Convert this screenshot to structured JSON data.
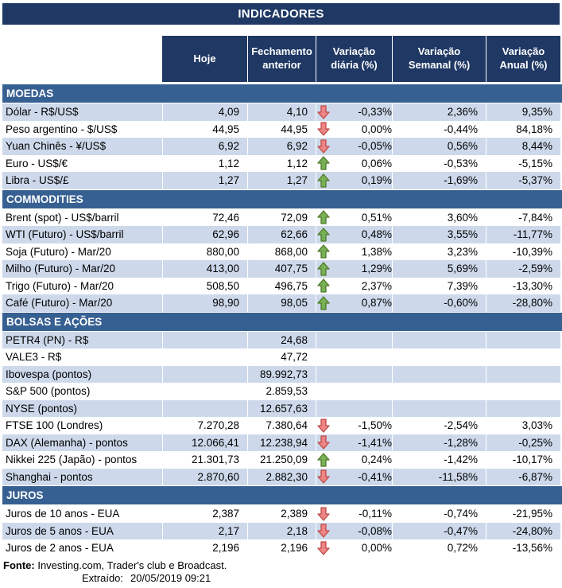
{
  "title": "INDICADORES",
  "columns": [
    "Hoje",
    "Fechamento anterior",
    "Variação diária (%)",
    "Variação Semanal (%)",
    "Variação Anual (%)"
  ],
  "colors": {
    "navy": "#1F3864",
    "section_blue": "#376092",
    "shaded_row": "#CDD9EB",
    "arrow_up_fill": "#77B055",
    "arrow_up_stroke": "#4F7A28",
    "arrow_down_fill": "#EE8585",
    "arrow_down_stroke": "#BE4B48"
  },
  "sections": [
    {
      "name": "MOEDAS",
      "first_row_shaded": true,
      "rows": [
        {
          "label": "Dólar - R$/US$",
          "hoje": "4,09",
          "fechamento": "4,10",
          "arrow": "down",
          "diaria": "-0,33%",
          "semanal": "2,36%",
          "anual": "9,35%"
        },
        {
          "label": "Peso argentino - $/US$",
          "hoje": "44,95",
          "fechamento": "44,95",
          "arrow": "down",
          "diaria": "0,00%",
          "semanal": "-0,44%",
          "anual": "84,18%"
        },
        {
          "label": "Yuan Chinês - ¥/US$",
          "hoje": "6,92",
          "fechamento": "6,92",
          "arrow": "down",
          "diaria": "-0,05%",
          "semanal": "0,56%",
          "anual": "8,44%"
        },
        {
          "label": "Euro - US$/€",
          "hoje": "1,12",
          "fechamento": "1,12",
          "arrow": "up",
          "diaria": "0,06%",
          "semanal": "-0,53%",
          "anual": "-5,15%"
        },
        {
          "label": "Libra - US$/£",
          "hoje": "1,27",
          "fechamento": "1,27",
          "arrow": "up",
          "diaria": "0,19%",
          "semanal": "-1,69%",
          "anual": "-5,37%"
        }
      ]
    },
    {
      "name": "COMMODITIES",
      "first_row_shaded": false,
      "rows": [
        {
          "label": "Brent (spot) - US$/barril",
          "hoje": "72,46",
          "fechamento": "72,09",
          "arrow": "up",
          "diaria": "0,51%",
          "semanal": "3,60%",
          "anual": "-7,84%"
        },
        {
          "label": "WTI (Futuro) - US$/barril",
          "hoje": "62,96",
          "fechamento": "62,66",
          "arrow": "up",
          "diaria": "0,48%",
          "semanal": "3,55%",
          "anual": "-11,77%"
        },
        {
          "label": "Soja (Futuro) - Mar/20",
          "hoje": "880,00",
          "fechamento": "868,00",
          "arrow": "up",
          "diaria": "1,38%",
          "semanal": "3,23%",
          "anual": "-10,39%"
        },
        {
          "label": "Milho (Futuro) - Mar/20",
          "hoje": "413,00",
          "fechamento": "407,75",
          "arrow": "up",
          "diaria": "1,29%",
          "semanal": "5,69%",
          "anual": "-2,59%"
        },
        {
          "label": "Trigo (Futuro) - Mar/20",
          "hoje": "508,50",
          "fechamento": "496,75",
          "arrow": "up",
          "diaria": "2,37%",
          "semanal": "7,39%",
          "anual": "-13,30%"
        },
        {
          "label": "Café (Futuro) - Mar/20",
          "hoje": "98,90",
          "fechamento": "98,05",
          "arrow": "up",
          "diaria": "0,87%",
          "semanal": "-0,60%",
          "anual": "-28,80%"
        }
      ]
    },
    {
      "name": "BOLSAS E AÇÕES",
      "first_row_shaded": true,
      "rows": [
        {
          "label": "PETR4 (PN) - R$",
          "hoje": "",
          "fechamento": "24,68",
          "arrow": null,
          "diaria": "",
          "semanal": "",
          "anual": ""
        },
        {
          "label": "VALE3 - R$",
          "hoje": "",
          "fechamento": "47,72",
          "arrow": null,
          "diaria": "",
          "semanal": "",
          "anual": ""
        },
        {
          "label": "Ibovespa (pontos)",
          "hoje": "",
          "fechamento": "89.992,73",
          "arrow": null,
          "diaria": "",
          "semanal": "",
          "anual": ""
        },
        {
          "label": "S&P 500 (pontos)",
          "hoje": "",
          "fechamento": "2.859,53",
          "arrow": null,
          "diaria": "",
          "semanal": "",
          "anual": ""
        },
        {
          "label": "NYSE (pontos)",
          "hoje": "",
          "fechamento": "12.657,63",
          "arrow": null,
          "diaria": "",
          "semanal": "",
          "anual": ""
        },
        {
          "label": "FTSE 100 (Londres)",
          "hoje": "7.270,28",
          "fechamento": "7.380,64",
          "arrow": "down",
          "diaria": "-1,50%",
          "semanal": "-2,54%",
          "anual": "3,03%"
        },
        {
          "label": "DAX (Alemanha) - pontos",
          "hoje": "12.066,41",
          "fechamento": "12.238,94",
          "arrow": "down",
          "diaria": "-1,41%",
          "semanal": "-1,28%",
          "anual": "-0,25%"
        },
        {
          "label": "Nikkei 225 (Japão) - pontos",
          "hoje": "21.301,73",
          "fechamento": "21.250,09",
          "arrow": "up",
          "diaria": "0,24%",
          "semanal": "-1,42%",
          "anual": "-10,17%"
        },
        {
          "label": "Shanghai - pontos",
          "hoje": "2.870,60",
          "fechamento": "2.882,30",
          "arrow": "down",
          "diaria": "-0,41%",
          "semanal": "-11,58%",
          "anual": "-6,87%"
        }
      ]
    },
    {
      "name": "JUROS",
      "first_row_shaded": false,
      "rows": [
        {
          "label": "Juros de 10 anos - EUA",
          "hoje": "2,387",
          "fechamento": "2,389",
          "arrow": "down",
          "diaria": "-0,11%",
          "semanal": "-0,74%",
          "anual": "-21,95%"
        },
        {
          "label": "Juros de 5 anos - EUA",
          "hoje": "2,17",
          "fechamento": "2,18",
          "arrow": "down",
          "diaria": "-0,08%",
          "semanal": "-0,47%",
          "anual": "-24,80%"
        },
        {
          "label": "Juros de 2 anos - EUA",
          "hoje": "2,196",
          "fechamento": "2,196",
          "arrow": "down",
          "diaria": "0,00%",
          "semanal": "0,72%",
          "anual": "-13,56%"
        }
      ]
    }
  ],
  "footer": {
    "source_label": "Fonte:",
    "source_text": " Investing.com, Trader's club e Broadcast.",
    "extracted_label": "Extraído:",
    "extracted_value": "20/05/2019 09:21"
  }
}
